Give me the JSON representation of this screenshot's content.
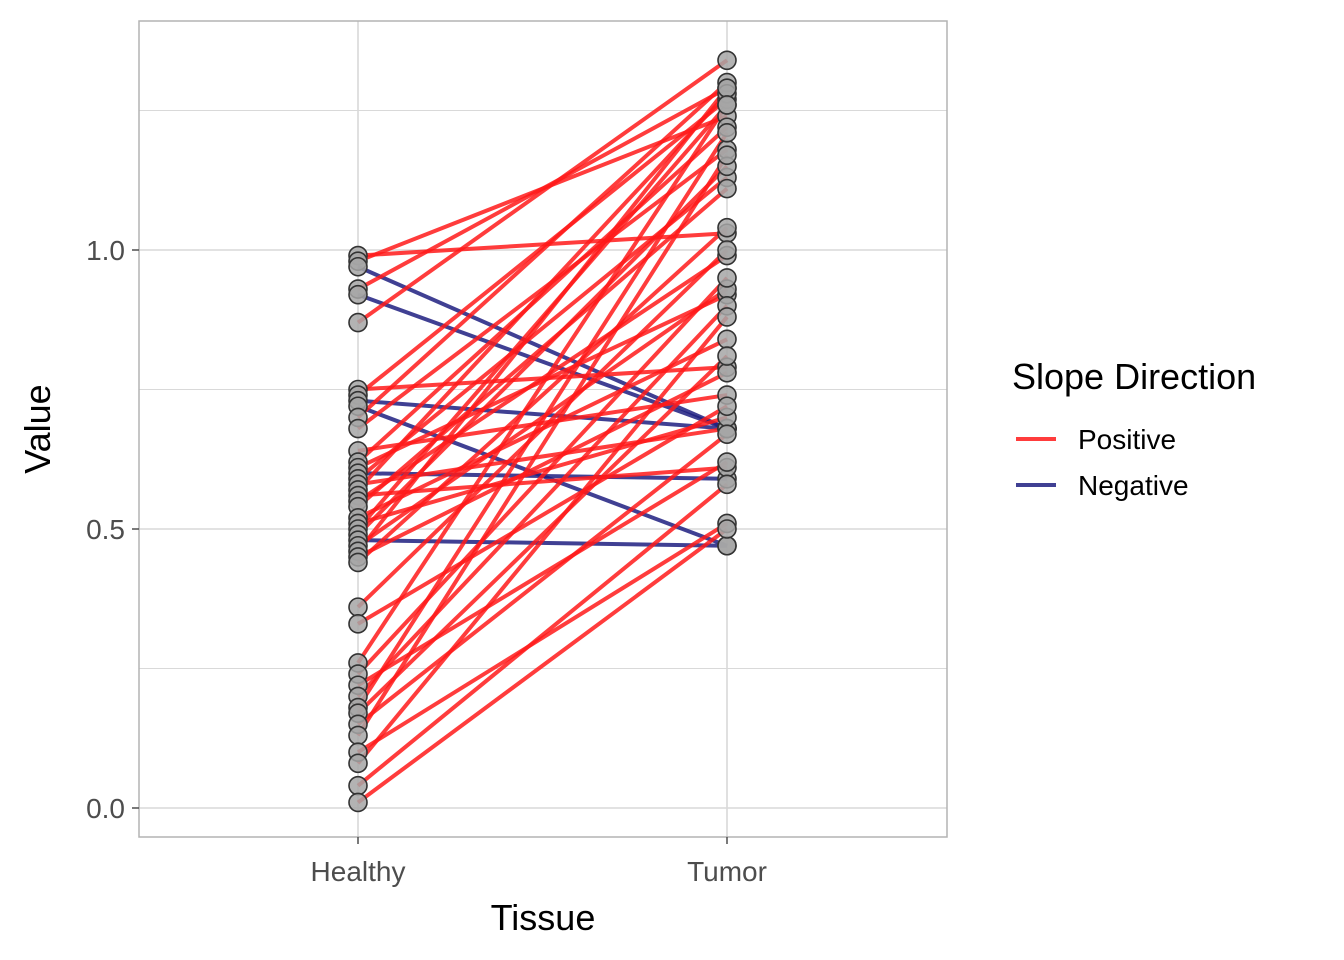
{
  "chart_data": {
    "type": "line",
    "xlabel": "Tissue",
    "ylabel": "Value",
    "categories": [
      "Healthy",
      "Tumor"
    ],
    "ylim": [
      -0.05,
      1.41
    ],
    "yticks": [
      0.0,
      0.5,
      1.0
    ],
    "ytick_labels": [
      "0.0",
      "0.5",
      "1.0"
    ],
    "grid": true,
    "legend": {
      "title": "Slope Direction",
      "position": "right",
      "entries": [
        {
          "label": "Positive",
          "color": "#ff1a1a"
        },
        {
          "label": "Negative",
          "color": "#1e1e80"
        }
      ]
    },
    "colors": {
      "positive": "#ff1a1a",
      "negative": "#1e1e80",
      "point_fill": "#a6a6a6",
      "point_stroke": "#333333",
      "grid": "#d9d9d9",
      "panel_border": "#b3b3b3"
    },
    "pairs": [
      {
        "healthy": 0.99,
        "tumor": 1.03,
        "direction": "Positive"
      },
      {
        "healthy": 0.98,
        "tumor": 1.24,
        "direction": "Positive"
      },
      {
        "healthy": 0.97,
        "tumor": 0.68,
        "direction": "Negative"
      },
      {
        "healthy": 0.93,
        "tumor": 1.29,
        "direction": "Positive"
      },
      {
        "healthy": 0.92,
        "tumor": 0.68,
        "direction": "Negative"
      },
      {
        "healthy": 0.87,
        "tumor": 1.34,
        "direction": "Positive"
      },
      {
        "healthy": 0.75,
        "tumor": 0.79,
        "direction": "Positive"
      },
      {
        "healthy": 0.74,
        "tumor": 1.27,
        "direction": "Positive"
      },
      {
        "healthy": 0.73,
        "tumor": 0.68,
        "direction": "Negative"
      },
      {
        "healthy": 0.72,
        "tumor": 0.47,
        "direction": "Negative"
      },
      {
        "healthy": 0.7,
        "tumor": 1.3,
        "direction": "Positive"
      },
      {
        "healthy": 0.68,
        "tumor": 1.18,
        "direction": "Positive"
      },
      {
        "healthy": 0.64,
        "tumor": 0.74,
        "direction": "Positive"
      },
      {
        "healthy": 0.62,
        "tumor": 1.22,
        "direction": "Positive"
      },
      {
        "healthy": 0.61,
        "tumor": 0.92,
        "direction": "Positive"
      },
      {
        "healthy": 0.6,
        "tumor": 0.59,
        "direction": "Negative"
      },
      {
        "healthy": 0.59,
        "tumor": 1.13,
        "direction": "Positive"
      },
      {
        "healthy": 0.58,
        "tumor": 0.68,
        "direction": "Positive"
      },
      {
        "healthy": 0.57,
        "tumor": 1.28,
        "direction": "Positive"
      },
      {
        "healthy": 0.56,
        "tumor": 0.61,
        "direction": "Positive"
      },
      {
        "healthy": 0.55,
        "tumor": 0.99,
        "direction": "Positive"
      },
      {
        "healthy": 0.54,
        "tumor": 1.11,
        "direction": "Positive"
      },
      {
        "healthy": 0.52,
        "tumor": 0.84,
        "direction": "Positive"
      },
      {
        "healthy": 0.51,
        "tumor": 0.7,
        "direction": "Positive"
      },
      {
        "healthy": 0.5,
        "tumor": 1.26,
        "direction": "Positive"
      },
      {
        "healthy": 0.49,
        "tumor": 1.15,
        "direction": "Positive"
      },
      {
        "healthy": 0.48,
        "tumor": 0.47,
        "direction": "Negative"
      },
      {
        "healthy": 0.47,
        "tumor": 0.93,
        "direction": "Positive"
      },
      {
        "healthy": 0.46,
        "tumor": 1.29,
        "direction": "Positive"
      },
      {
        "healthy": 0.45,
        "tumor": 0.78,
        "direction": "Positive"
      },
      {
        "healthy": 0.44,
        "tumor": 1.04,
        "direction": "Positive"
      },
      {
        "healthy": 0.36,
        "tumor": 1.0,
        "direction": "Positive"
      },
      {
        "healthy": 0.33,
        "tumor": 0.72,
        "direction": "Positive"
      },
      {
        "healthy": 0.26,
        "tumor": 1.26,
        "direction": "Positive"
      },
      {
        "healthy": 0.24,
        "tumor": 0.95,
        "direction": "Positive"
      },
      {
        "healthy": 0.22,
        "tumor": 0.62,
        "direction": "Positive"
      },
      {
        "healthy": 0.2,
        "tumor": 0.9,
        "direction": "Positive"
      },
      {
        "healthy": 0.18,
        "tumor": 1.21,
        "direction": "Positive"
      },
      {
        "healthy": 0.17,
        "tumor": 0.81,
        "direction": "Positive"
      },
      {
        "healthy": 0.15,
        "tumor": 0.67,
        "direction": "Positive"
      },
      {
        "healthy": 0.13,
        "tumor": 1.17,
        "direction": "Positive"
      },
      {
        "healthy": 0.1,
        "tumor": 0.51,
        "direction": "Positive"
      },
      {
        "healthy": 0.08,
        "tumor": 0.88,
        "direction": "Positive"
      },
      {
        "healthy": 0.04,
        "tumor": 0.58,
        "direction": "Positive"
      },
      {
        "healthy": 0.01,
        "tumor": 0.5,
        "direction": "Positive"
      }
    ]
  }
}
